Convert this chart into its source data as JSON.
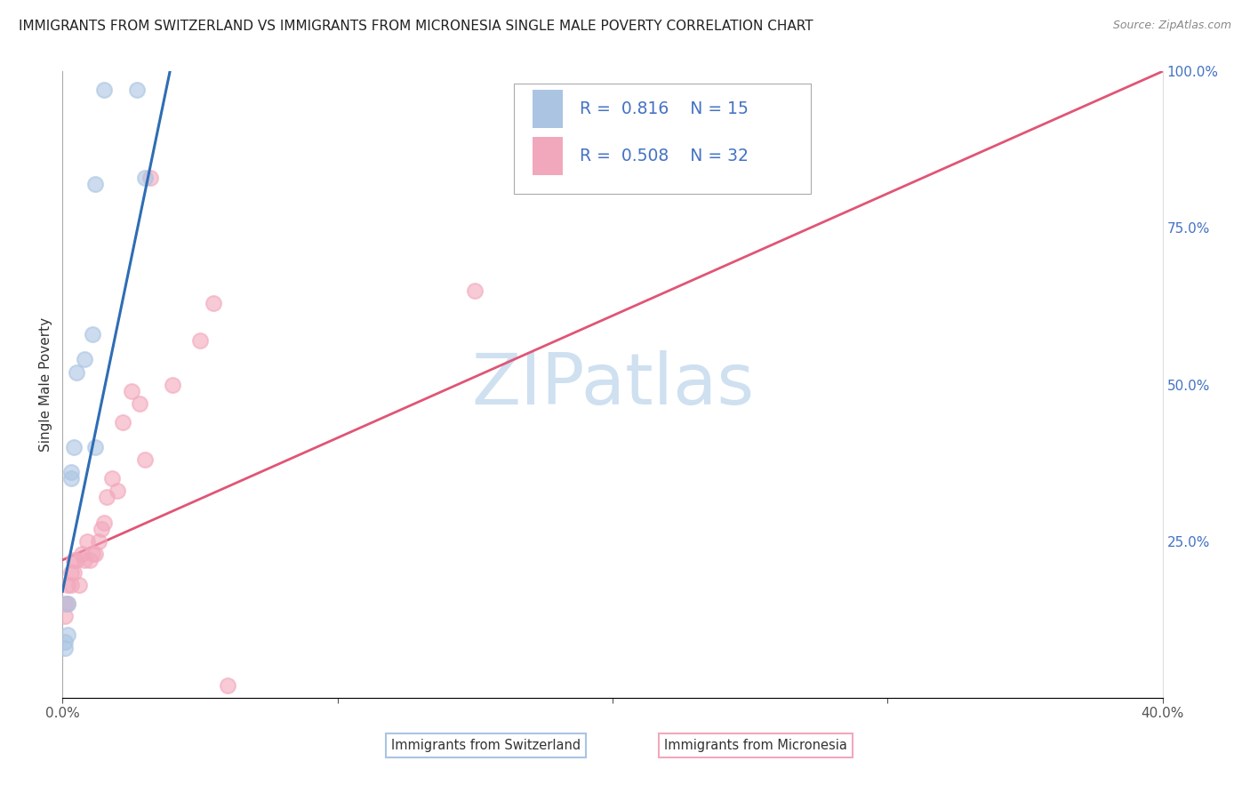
{
  "title": "IMMIGRANTS FROM SWITZERLAND VS IMMIGRANTS FROM MICRONESIA SINGLE MALE POVERTY CORRELATION CHART",
  "source": "Source: ZipAtlas.com",
  "ylabel": "Single Male Poverty",
  "x_min": 0.0,
  "x_max": 0.4,
  "y_min": 0.0,
  "y_max": 1.0,
  "x_ticks": [
    0.0,
    0.1,
    0.2,
    0.3,
    0.4
  ],
  "x_tick_labels": [
    "0.0%",
    "",
    "",
    "",
    "40.0%"
  ],
  "y_ticks": [
    0.0,
    0.25,
    0.5,
    0.75,
    1.0
  ],
  "y_tick_labels_right": [
    "",
    "25.0%",
    "50.0%",
    "75.0%",
    "100.0%"
  ],
  "switzerland_R": 0.816,
  "switzerland_N": 15,
  "micronesia_R": 0.508,
  "micronesia_N": 32,
  "switzerland_color": "#aac4e2",
  "micronesia_color": "#f2a8bc",
  "switzerland_line_color": "#2e6db4",
  "micronesia_line_color": "#e05575",
  "legend_r_color": "#4472c4",
  "watermark_color": "#cfe0f0",
  "switzerland_x": [
    0.001,
    0.001,
    0.002,
    0.002,
    0.003,
    0.003,
    0.004,
    0.005,
    0.008,
    0.011,
    0.012,
    0.012,
    0.015,
    0.027,
    0.03
  ],
  "switzerland_y": [
    0.08,
    0.09,
    0.1,
    0.15,
    0.35,
    0.36,
    0.4,
    0.52,
    0.54,
    0.58,
    0.4,
    0.82,
    0.97,
    0.97,
    0.83
  ],
  "micronesia_x": [
    0.001,
    0.001,
    0.002,
    0.002,
    0.003,
    0.003,
    0.004,
    0.004,
    0.005,
    0.006,
    0.007,
    0.008,
    0.009,
    0.01,
    0.011,
    0.012,
    0.013,
    0.014,
    0.015,
    0.016,
    0.018,
    0.02,
    0.022,
    0.025,
    0.028,
    0.03,
    0.032,
    0.04,
    0.05,
    0.055,
    0.06,
    0.15
  ],
  "micronesia_y": [
    0.13,
    0.15,
    0.15,
    0.18,
    0.18,
    0.2,
    0.2,
    0.22,
    0.22,
    0.18,
    0.23,
    0.22,
    0.25,
    0.22,
    0.23,
    0.23,
    0.25,
    0.27,
    0.28,
    0.32,
    0.35,
    0.33,
    0.44,
    0.49,
    0.47,
    0.38,
    0.83,
    0.5,
    0.57,
    0.63,
    0.02,
    0.65
  ],
  "switzerland_line_x": [
    0.0,
    0.04
  ],
  "switzerland_line_y": [
    0.17,
    1.02
  ],
  "micronesia_line_x": [
    0.0,
    0.4
  ],
  "micronesia_line_y": [
    0.22,
    1.0
  ]
}
